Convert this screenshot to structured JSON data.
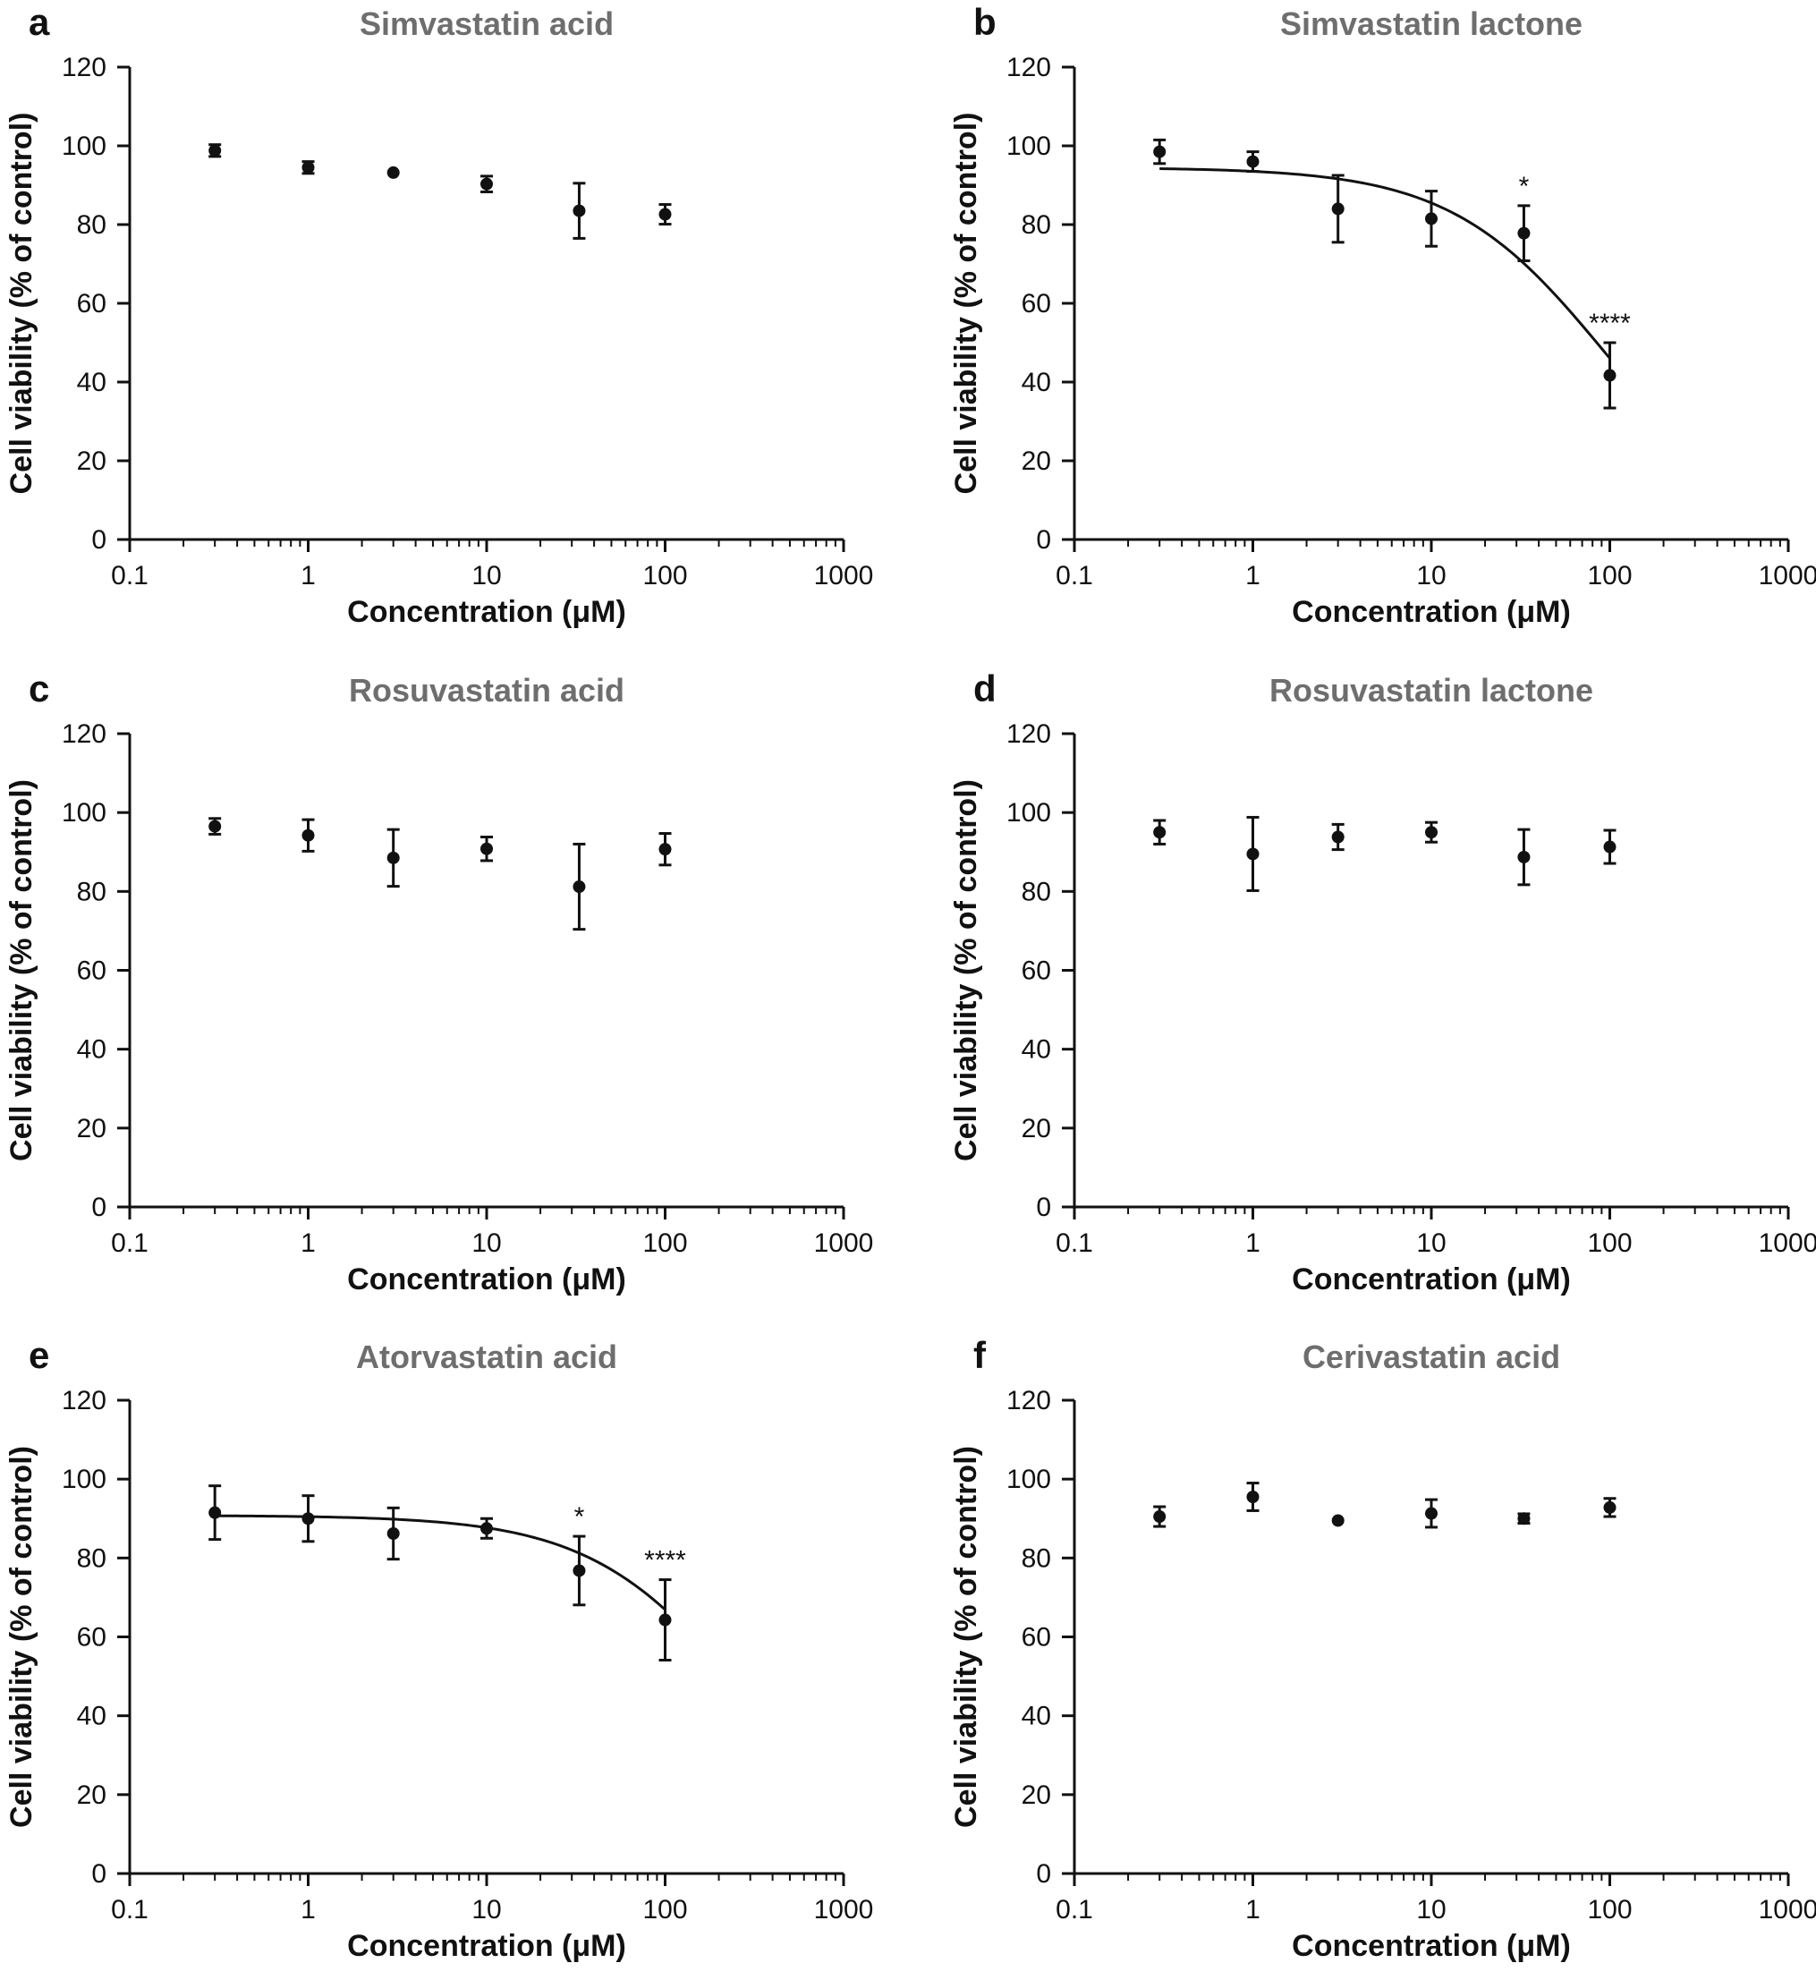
{
  "chart_data": [
    {
      "type": "scatter",
      "panel": "a",
      "title": "Simvastatin acid",
      "xlabel": "Concentration (μM)",
      "ylabel": "Cell viability (% of control)",
      "xscale": "log",
      "xlim": [
        0.1,
        1000
      ],
      "ylim": [
        0,
        120
      ],
      "xticks": [
        "0.1",
        "1",
        "10",
        "100",
        "1000"
      ],
      "yticks": [
        "0",
        "20",
        "40",
        "60",
        "80",
        "100",
        "120"
      ],
      "series": [
        {
          "name": "Simvastatin acid",
          "x": [
            0.3,
            1,
            3,
            10,
            33,
            100
          ],
          "y": [
            98.8,
            94.5,
            93.2,
            90.3,
            83.5,
            82.6
          ],
          "err": [
            1.5,
            1.5,
            0,
            2.0,
            7.0,
            2.5
          ]
        }
      ],
      "fit": null,
      "annotations": []
    },
    {
      "type": "scatter",
      "panel": "b",
      "title": "Simvastatin lactone",
      "xlabel": "Concentration (μM)",
      "ylabel": "Cell viability (% of control)",
      "xscale": "log",
      "xlim": [
        0.1,
        1000
      ],
      "ylim": [
        0,
        120
      ],
      "xticks": [
        "0.1",
        "1",
        "10",
        "100",
        "1000"
      ],
      "yticks": [
        "0",
        "20",
        "40",
        "60",
        "80",
        "100",
        "120"
      ],
      "series": [
        {
          "name": "Simvastatin lactone",
          "x": [
            0.3,
            1,
            3,
            10,
            33,
            100
          ],
          "y": [
            98.5,
            96.0,
            84.0,
            81.5,
            77.8,
            41.7
          ],
          "err": [
            3.0,
            2.5,
            8.5,
            7.0,
            7.0,
            8.3
          ]
        }
      ],
      "fit": {
        "top": 94.5,
        "bottom": 0,
        "ec50": 95,
        "hill": 1.0,
        "xrange": [
          0.3,
          100
        ]
      },
      "annotations": [
        {
          "x": 33,
          "y": 84.8,
          "text": "*"
        },
        {
          "x": 100,
          "y": 50.0,
          "text": "****"
        }
      ]
    },
    {
      "type": "scatter",
      "panel": "c",
      "title": "Rosuvastatin acid",
      "xlabel": "Concentration (μM)",
      "ylabel": "Cell viability (% of control)",
      "xscale": "log",
      "xlim": [
        0.1,
        1000
      ],
      "ylim": [
        0,
        120
      ],
      "xticks": [
        "0.1",
        "1",
        "10",
        "100",
        "1000"
      ],
      "yticks": [
        "0",
        "20",
        "40",
        "60",
        "80",
        "100",
        "120"
      ],
      "series": [
        {
          "name": "Rosuvastatin acid",
          "x": [
            0.3,
            1,
            3,
            10,
            33,
            100
          ],
          "y": [
            96.5,
            94.2,
            88.5,
            90.8,
            81.2,
            90.7
          ],
          "err": [
            2.0,
            4.0,
            7.2,
            3.0,
            10.8,
            4.0
          ]
        }
      ],
      "fit": null,
      "annotations": []
    },
    {
      "type": "scatter",
      "panel": "d",
      "title": "Rosuvastatin lactone",
      "xlabel": "Concentration (μM)",
      "ylabel": "Cell viability (% of control)",
      "xscale": "log",
      "xlim": [
        0.1,
        1000
      ],
      "ylim": [
        0,
        120
      ],
      "xticks": [
        "0.1",
        "1",
        "10",
        "100",
        "1000"
      ],
      "yticks": [
        "0",
        "20",
        "40",
        "60",
        "80",
        "100",
        "120"
      ],
      "series": [
        {
          "name": "Rosuvastatin lactone",
          "x": [
            0.3,
            1,
            3,
            10,
            33,
            100
          ],
          "y": [
            95.0,
            89.5,
            93.8,
            95.0,
            88.7,
            91.3
          ],
          "err": [
            3.0,
            9.3,
            3.2,
            2.5,
            7.0,
            4.2
          ]
        }
      ],
      "fit": null,
      "annotations": []
    },
    {
      "type": "scatter",
      "panel": "e",
      "title": "Atorvastatin acid",
      "xlabel": "Concentration (μM)",
      "ylabel": "Cell viability (% of control)",
      "xscale": "log",
      "xlim": [
        0.1,
        1000
      ],
      "ylim": [
        0,
        120
      ],
      "xticks": [
        "0.1",
        "1",
        "10",
        "100",
        "1000"
      ],
      "yticks": [
        "0",
        "20",
        "40",
        "60",
        "80",
        "100",
        "120"
      ],
      "series": [
        {
          "name": "Atorvastatin acid",
          "x": [
            0.3,
            1,
            3,
            10,
            33,
            100
          ],
          "y": [
            91.5,
            90.0,
            86.2,
            87.5,
            76.8,
            64.3
          ],
          "err": [
            6.8,
            5.8,
            6.5,
            2.5,
            8.7,
            10.2
          ]
        }
      ],
      "fit": {
        "top": 90.8,
        "bottom": 0,
        "ec50": 280,
        "hill": 1.0,
        "xrange": [
          0.3,
          100
        ]
      },
      "annotations": [
        {
          "x": 33,
          "y": 85.5,
          "text": "*"
        },
        {
          "x": 100,
          "y": 74.5,
          "text": "****"
        }
      ]
    },
    {
      "type": "scatter",
      "panel": "f",
      "title": "Cerivastatin acid",
      "xlabel": "Concentration (μM)",
      "ylabel": "Cell viability (% of control)",
      "xscale": "log",
      "xlim": [
        0.1,
        1000
      ],
      "ylim": [
        0,
        120
      ],
      "xticks": [
        "0.1",
        "1",
        "10",
        "100",
        "1000"
      ],
      "yticks": [
        "0",
        "20",
        "40",
        "60",
        "80",
        "100",
        "120"
      ],
      "series": [
        {
          "name": "Cerivastatin acid",
          "x": [
            0.3,
            1,
            3,
            10,
            33,
            100
          ],
          "y": [
            90.5,
            95.5,
            89.5,
            91.3,
            90.0,
            92.8
          ],
          "err": [
            2.5,
            3.5,
            0,
            3.5,
            1.2,
            2.3
          ]
        }
      ],
      "fit": null,
      "annotations": []
    }
  ]
}
